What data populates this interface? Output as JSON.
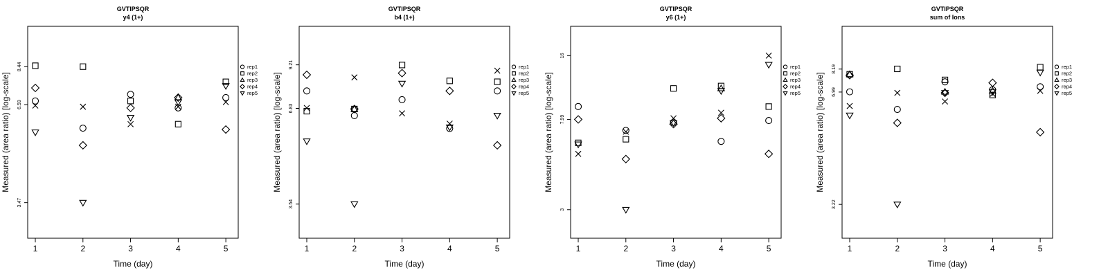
{
  "chart_data": [
    {
      "type": "scatter",
      "title": "GVTIPSQR",
      "subtitle": "y4 (1+)",
      "xlabel": "Time (day)",
      "ylabel": "Measured (area ratio) [log-scale]",
      "x_ticks": [
        1,
        2,
        3,
        4,
        5
      ],
      "y_ticks": [
        "3.47",
        "6.59",
        "8.44"
      ],
      "y_scale": "log",
      "ylim": [
        2.75,
        11.0
      ],
      "legend_position": "right",
      "series": [
        {
          "name": "rep1",
          "marker": "circle",
          "x": [
            1,
            2,
            3,
            4,
            5
          ],
          "y": [
            6.75,
            5.65,
            7.05,
            6.45,
            6.9
          ]
        },
        {
          "name": "rep2",
          "marker": "square",
          "x": [
            1,
            2,
            3,
            4,
            5
          ],
          "y": [
            8.5,
            8.45,
            6.75,
            5.8,
            7.65
          ]
        },
        {
          "name": "rep3",
          "marker": "triangle-up",
          "x": [
            4
          ],
          "y": [
            6.9
          ]
        },
        {
          "name": "rep4",
          "marker": "diamond",
          "x": [
            1,
            2,
            3,
            4,
            5
          ],
          "y": [
            7.35,
            5.05,
            6.45,
            6.9,
            5.6
          ]
        },
        {
          "name": "rep5",
          "marker": "triangle-down",
          "x": [
            1,
            2,
            3,
            4,
            5
          ],
          "y": [
            5.5,
            3.47,
            6.05,
            6.7,
            7.45
          ]
        },
        {
          "name": "",
          "marker": "x",
          "x": [
            1,
            2,
            3,
            4,
            5
          ],
          "y": [
            6.55,
            6.5,
            5.8,
            6.5,
            6.7
          ]
        }
      ]
    },
    {
      "type": "scatter",
      "title": "GVTIPSQR",
      "subtitle": "b4 (1+)",
      "xlabel": "Time (day)",
      "ylabel": "Measured (area ratio) [log-scale]",
      "x_ticks": [
        1,
        2,
        3,
        4,
        5
      ],
      "y_ticks": [
        "3.54",
        "6.83",
        "9.21"
      ],
      "y_scale": "log",
      "ylim": [
        2.8,
        12.0
      ],
      "legend_position": "right",
      "series": [
        {
          "name": "rep1",
          "marker": "circle",
          "x": [
            1,
            2,
            3,
            4,
            5
          ],
          "y": [
            7.7,
            6.5,
            7.25,
            5.95,
            7.7
          ]
        },
        {
          "name": "rep2",
          "marker": "square",
          "x": [
            1,
            2,
            3,
            4,
            5
          ],
          "y": [
            6.7,
            6.8,
            9.2,
            8.25,
            8.2
          ]
        },
        {
          "name": "rep3",
          "marker": "triangle-up",
          "x": [
            2
          ],
          "y": [
            6.8
          ]
        },
        {
          "name": "rep4",
          "marker": "diamond",
          "x": [
            1,
            2,
            3,
            4,
            5
          ],
          "y": [
            8.6,
            6.8,
            8.7,
            7.7,
            5.3
          ]
        },
        {
          "name": "rep5",
          "marker": "triangle-down",
          "x": [
            1,
            2,
            3,
            4,
            5
          ],
          "y": [
            5.45,
            3.54,
            8.1,
            6.0,
            6.5
          ]
        },
        {
          "name": "",
          "marker": "x",
          "x": [
            1,
            2,
            3,
            4,
            5
          ],
          "y": [
            6.85,
            8.45,
            6.6,
            6.15,
            8.85
          ]
        }
      ]
    },
    {
      "type": "scatter",
      "title": "GVTIPSQR",
      "subtitle": "y6 (1+)",
      "xlabel": "Time (day)",
      "ylabel": "Measured (area ratio) [log-scale]",
      "x_ticks": [
        1,
        2,
        3,
        4,
        5
      ],
      "y_ticks": [
        "3",
        "7.99",
        "16"
      ],
      "y_scale": "log",
      "ylim": [
        2.2,
        22.0
      ],
      "legend_position": "right",
      "series": [
        {
          "name": "rep1",
          "marker": "circle",
          "x": [
            1,
            2,
            3,
            4,
            5
          ],
          "y": [
            9.2,
            7.1,
            7.75,
            6.3,
            7.9
          ]
        },
        {
          "name": "rep2",
          "marker": "square",
          "x": [
            1,
            2,
            3,
            4,
            5
          ],
          "y": [
            6.2,
            6.45,
            11.2,
            11.5,
            9.2
          ]
        },
        {
          "name": "rep3",
          "marker": "triangle-up",
          "x": [
            4
          ],
          "y": [
            11.2
          ]
        },
        {
          "name": "rep4",
          "marker": "diamond",
          "x": [
            1,
            2,
            3,
            4,
            5
          ],
          "y": [
            8.0,
            5.2,
            7.6,
            8.1,
            5.5
          ]
        },
        {
          "name": "rep5",
          "marker": "triangle-down",
          "x": [
            1,
            2,
            3,
            4,
            5
          ],
          "y": [
            6.1,
            3.0,
            7.7,
            10.9,
            14.5
          ]
        },
        {
          "name": "",
          "marker": "x",
          "x": [
            1,
            2,
            3,
            4,
            5
          ],
          "y": [
            5.5,
            7.0,
            8.1,
            8.6,
            16.0
          ]
        }
      ]
    },
    {
      "type": "scatter",
      "title": "GVTIPSQR",
      "subtitle": "sum of Ions",
      "xlabel": "Time (day)",
      "ylabel": "Measured (area ratio) [log-scale]",
      "x_ticks": [
        1,
        2,
        3,
        4,
        5
      ],
      "y_ticks": [
        "3.22",
        "6.99",
        "8.19"
      ],
      "y_scale": "log",
      "ylim": [
        2.55,
        11.0
      ],
      "legend_position": "right",
      "series": [
        {
          "name": "rep1",
          "marker": "circle",
          "x": [
            1,
            2,
            3,
            4,
            5
          ],
          "y": [
            7.0,
            6.2,
            7.5,
            7.1,
            7.25
          ]
        },
        {
          "name": "rep2",
          "marker": "square",
          "x": [
            1,
            2,
            3,
            4,
            5
          ],
          "y": [
            7.9,
            8.2,
            7.6,
            6.85,
            8.3
          ]
        },
        {
          "name": "rep3",
          "marker": "triangle-up",
          "x": [
            1,
            3,
            4
          ],
          "y": [
            7.9,
            7.0,
            7.05
          ]
        },
        {
          "name": "rep4",
          "marker": "diamond",
          "x": [
            1,
            2,
            3,
            4,
            5
          ],
          "y": [
            7.85,
            5.65,
            6.95,
            7.45,
            5.3
          ]
        },
        {
          "name": "rep5",
          "marker": "triangle-down",
          "x": [
            1,
            2,
            3,
            4,
            5
          ],
          "y": [
            5.95,
            3.22,
            6.95,
            7.0,
            8.0
          ]
        },
        {
          "name": "",
          "marker": "x",
          "x": [
            1,
            2,
            3,
            4,
            5
          ],
          "y": [
            6.35,
            6.95,
            6.55,
            6.9,
            7.05
          ]
        }
      ]
    }
  ]
}
